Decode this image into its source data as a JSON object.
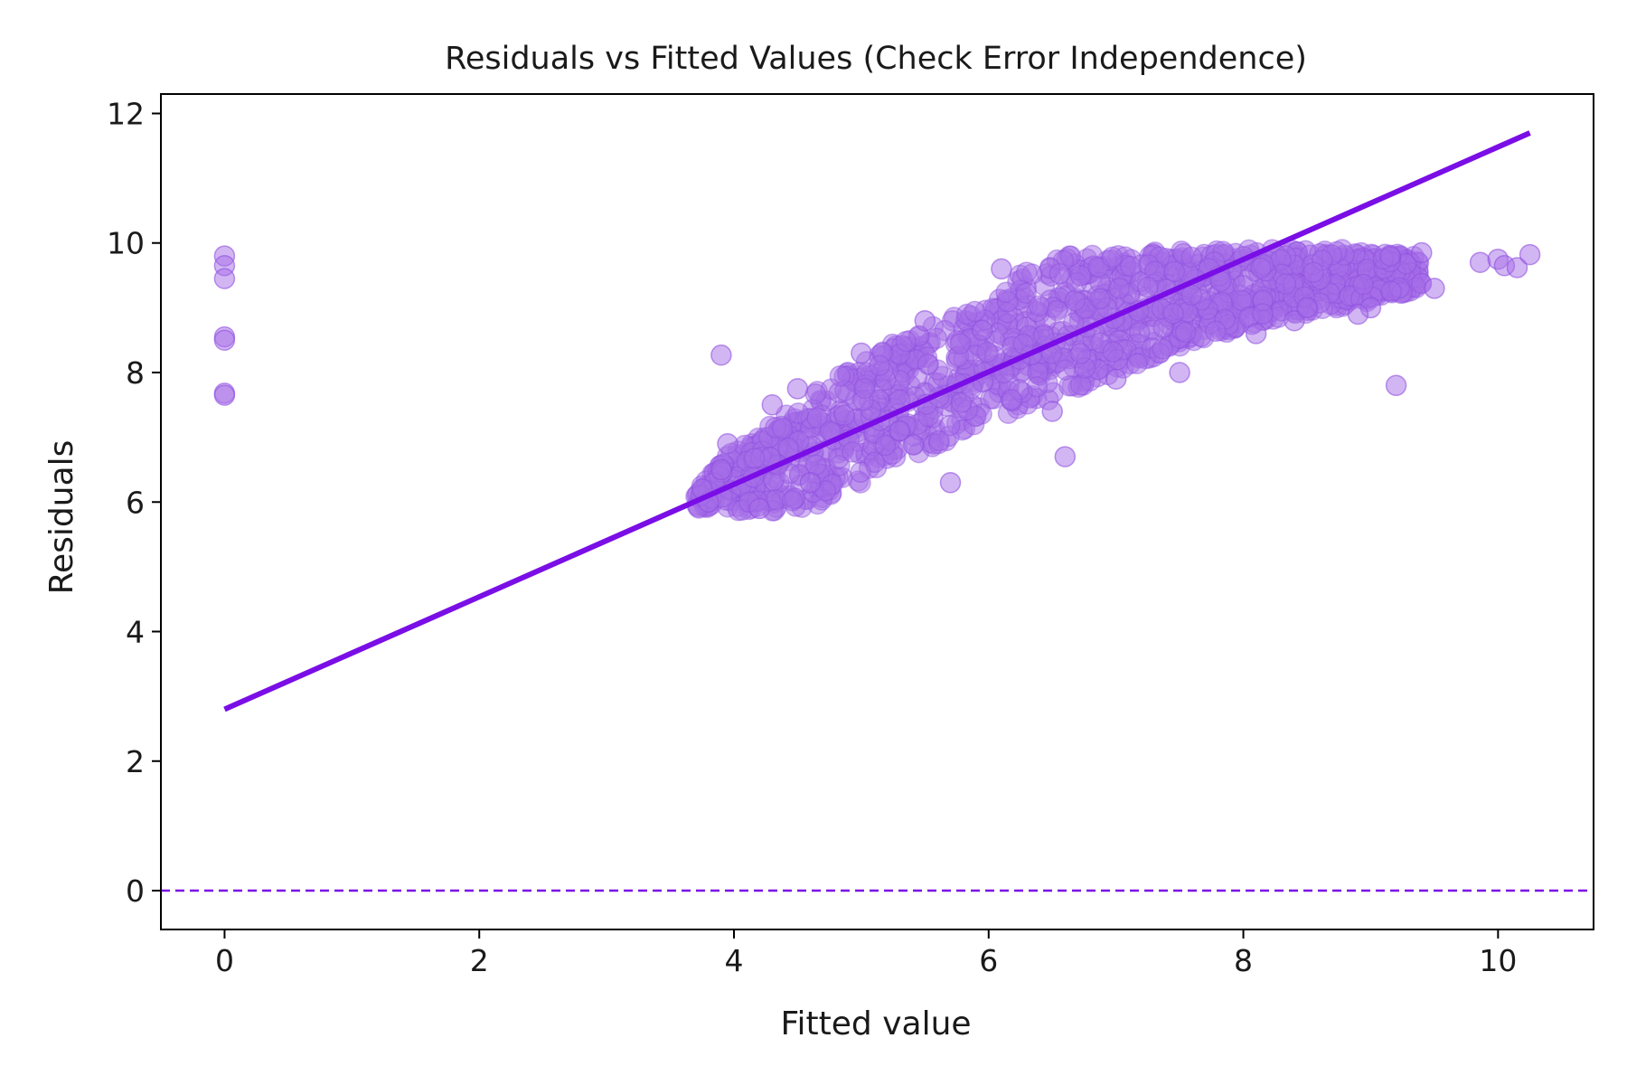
{
  "chart_data": {
    "type": "scatter",
    "title": "Residuals vs Fitted Values (Check Error Independence)",
    "xlabel": "Fitted value",
    "ylabel": "Residuals",
    "xlim": [
      -0.5,
      10.75
    ],
    "ylim": [
      -0.6,
      12.3
    ],
    "x_ticks": [
      0,
      2,
      4,
      6,
      8,
      10
    ],
    "y_ticks": [
      0,
      2,
      4,
      6,
      8,
      10,
      12
    ],
    "grid": false,
    "legend": "none",
    "colors": {
      "points": "#a56de8",
      "points_edge": "#8f4fe0",
      "fit_line": "#7a0ee6",
      "zero_line": "#7a0ee6"
    },
    "reference_line": {
      "y": 0,
      "style": "dashed"
    },
    "fit_line": {
      "x": [
        0,
        10.25
      ],
      "y": [
        2.8,
        11.7
      ]
    },
    "scatter": {
      "point_opacity": 0.5,
      "points": [
        [
          0,
          9.8
        ],
        [
          0,
          9.65
        ],
        [
          0,
          9.45
        ],
        [
          0,
          8.55
        ],
        [
          0,
          8.5
        ],
        [
          0,
          7.68
        ],
        [
          0,
          7.65
        ],
        [
          3.9,
          8.27
        ],
        [
          3.95,
          6.9
        ],
        [
          4.3,
          7.5
        ],
        [
          4.5,
          7.75
        ],
        [
          5.0,
          8.3
        ],
        [
          5.5,
          8.8
        ],
        [
          5.7,
          6.3
        ],
        [
          6.6,
          6.7
        ],
        [
          6.1,
          9.6
        ],
        [
          7.5,
          8.0
        ],
        [
          9.2,
          7.8
        ],
        [
          9.0,
          9.0
        ],
        [
          9.5,
          9.3
        ],
        [
          9.4,
          9.85
        ],
        [
          9.86,
          9.7
        ],
        [
          10.0,
          9.75
        ],
        [
          10.05,
          9.65
        ],
        [
          10.15,
          9.62
        ],
        [
          10.25,
          9.82
        ],
        [
          8.4,
          8.8
        ],
        [
          8.5,
          9.0
        ],
        [
          8.9,
          8.9
        ],
        [
          8.1,
          8.6
        ],
        [
          7.0,
          7.9
        ],
        [
          6.5,
          7.4
        ],
        [
          5.3,
          7.1
        ],
        [
          4.6,
          6.3
        ],
        [
          4.2,
          5.9
        ],
        [
          3.8,
          6.0
        ],
        [
          3.75,
          6.2
        ],
        [
          3.9,
          6.5
        ]
      ],
      "cloud": {
        "x_range": [
          3.7,
          9.4
        ],
        "upper": [
          [
            3.7,
            6.3
          ],
          [
            4.0,
            6.8
          ],
          [
            4.5,
            7.5
          ],
          [
            5.0,
            8.2
          ],
          [
            5.5,
            8.7
          ],
          [
            6.0,
            9.1
          ],
          [
            6.3,
            9.6
          ],
          [
            6.6,
            9.8
          ],
          [
            7.0,
            9.85
          ],
          [
            8.0,
            9.9
          ],
          [
            8.8,
            9.9
          ],
          [
            9.4,
            9.8
          ]
        ],
        "lower": [
          [
            3.7,
            5.9
          ],
          [
            4.2,
            5.85
          ],
          [
            4.6,
            5.9
          ],
          [
            5.0,
            6.3
          ],
          [
            5.5,
            6.8
          ],
          [
            6.0,
            7.2
          ],
          [
            6.5,
            7.6
          ],
          [
            7.0,
            8.0
          ],
          [
            7.5,
            8.4
          ],
          [
            8.0,
            8.7
          ],
          [
            8.5,
            8.9
          ],
          [
            9.0,
            9.1
          ],
          [
            9.4,
            9.3
          ]
        ]
      }
    }
  }
}
